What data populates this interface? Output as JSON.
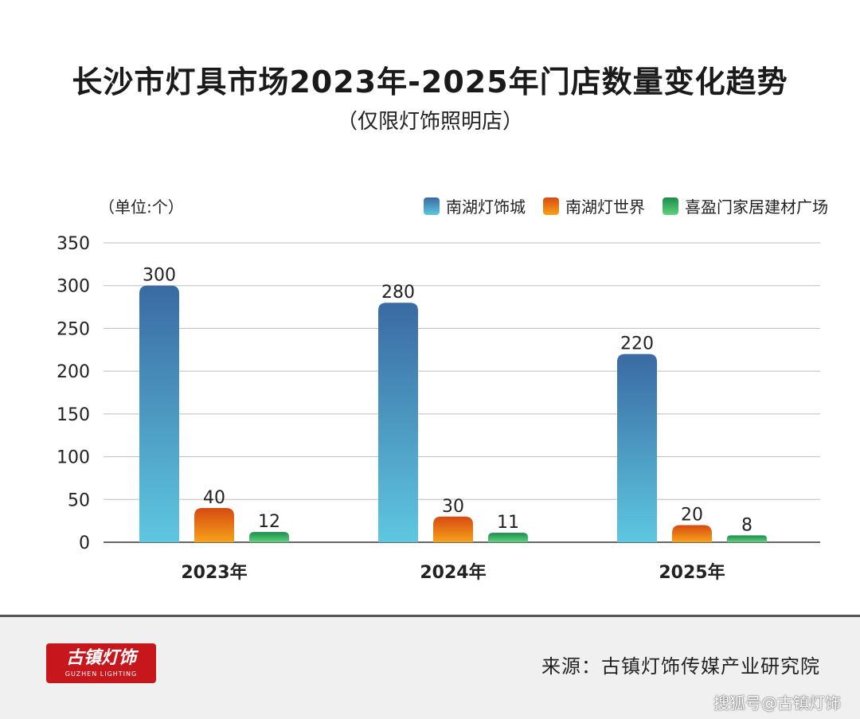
{
  "title": "长沙市灯具市场2023年-2025年门店数量变化趋势",
  "subtitle": "（仅限灯饰照明店）",
  "unit_label": "（单位:个）",
  "colors": {
    "南湖灯饰城": [
      "#3a6aa3",
      "#5ec7e0"
    ],
    "南湖灯世界": [
      "#d64a12",
      "#f7a21a"
    ],
    "喜盈门家居建材广场": [
      "#1d8c4c",
      "#5fd27e"
    ]
  },
  "chart_data": {
    "type": "bar",
    "categories": [
      "2023年",
      "2024年",
      "2025年"
    ],
    "series": [
      {
        "name": "南湖灯饰城",
        "values": [
          300,
          280,
          220
        ]
      },
      {
        "name": "南湖灯世界",
        "values": [
          40,
          30,
          20
        ]
      },
      {
        "name": "喜盈门家居建材广场",
        "values": [
          12,
          11,
          8
        ]
      }
    ],
    "yticks": [
      0,
      50,
      100,
      150,
      200,
      250,
      300,
      350
    ],
    "ylim": [
      0,
      350
    ],
    "grid": true,
    "legend_position": "top-right"
  },
  "footer": {
    "logo_text": "古镇灯饰",
    "logo_subtext": "GUZHEN LIGHTING",
    "source": "来源：古镇灯饰传媒产业研究院",
    "watermark": "搜狐号@古镇灯饰"
  }
}
